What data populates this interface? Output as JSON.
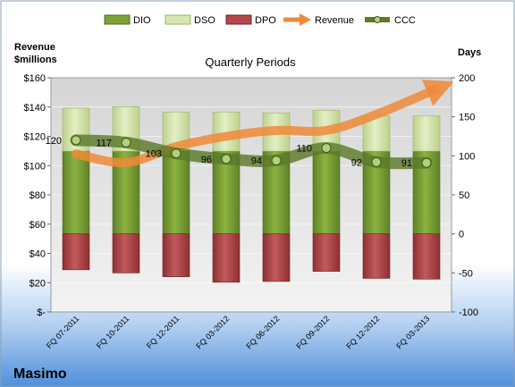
{
  "chart_data": {
    "type": "bar",
    "title": "Quarterly Periods",
    "company": "Masimo",
    "y_left_label": [
      "Revenue",
      "$millions"
    ],
    "y_right_label": "Days",
    "y_left_ticks": [
      "$160",
      "$140",
      "$120",
      "$100",
      "$80",
      "$60",
      "$40",
      "$20",
      "$-"
    ],
    "y_right_ticks": [
      "200",
      "150",
      "100",
      "50",
      "0",
      "-50",
      "-100"
    ],
    "y_left_range": [
      0,
      160
    ],
    "y_right_range": [
      -100,
      200
    ],
    "categories": [
      "FQ 07-2011",
      "FQ 10-2011",
      "FQ 12-2011",
      "FQ 03-2012",
      "FQ 06-2012",
      "FQ 09-2012",
      "FQ 12-2012",
      "FQ 03-2013"
    ],
    "legend": [
      "DIO",
      "DSO",
      "DPO",
      "Revenue",
      "CCC"
    ],
    "legend_position": "top",
    "series": [
      {
        "name": "DIO",
        "axis": "right",
        "values": [
          106,
          106,
          106,
          106,
          106,
          106,
          106,
          106
        ],
        "color": "#7da23a"
      },
      {
        "name": "DSO",
        "axis": "right",
        "values": [
          55,
          57,
          50,
          50,
          49,
          52,
          45,
          45
        ],
        "color": "#d6e6ad"
      },
      {
        "name": "DPO",
        "axis": "right",
        "values": [
          -46,
          -50,
          -55,
          -62,
          -61,
          -48,
          -57,
          -58
        ],
        "color": "#b5474a"
      },
      {
        "name": "Revenue",
        "axis": "left",
        "values": [
          108,
          102,
          113,
          120,
          124,
          124,
          135,
          152
        ],
        "color": "#f0893a"
      },
      {
        "name": "CCC",
        "axis": "right",
        "values": [
          120,
          117,
          103,
          96,
          94,
          110,
          92,
          91
        ],
        "labels": [
          "120",
          "117",
          "103",
          "96",
          "94",
          "110",
          "92",
          "91"
        ],
        "color": "#5b7a2c"
      }
    ]
  }
}
